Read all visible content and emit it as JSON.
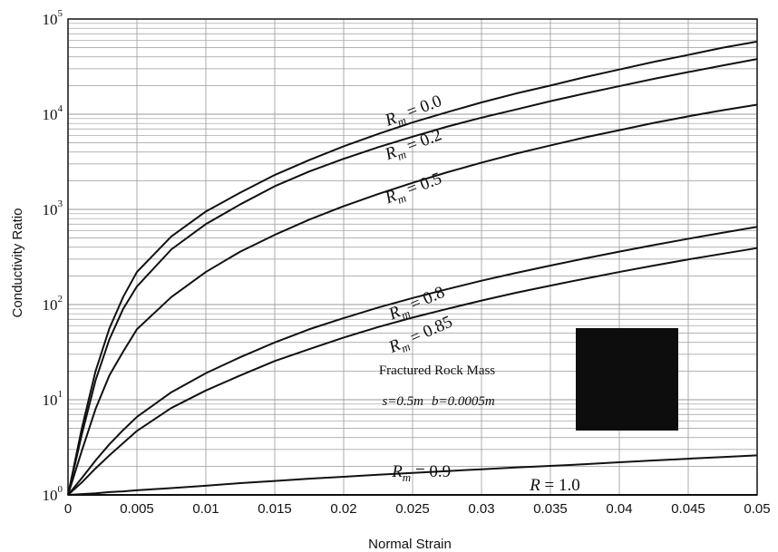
{
  "chart_data": {
    "type": "line",
    "title": "",
    "xlabel": "Normal Strain",
    "ylabel": "Conductivity Ratio",
    "xlim": [
      0,
      0.05
    ],
    "ylim": [
      1,
      100000
    ],
    "yscale": "log",
    "grid": true,
    "x_ticks": [
      "0",
      "0.005",
      "0.01",
      "0.015",
      "0.02",
      "0.025",
      "0.03",
      "0.035",
      "0.04",
      "0.045",
      "0.05"
    ],
    "y_ticks": [
      {
        "base": "10",
        "exp": "0"
      },
      {
        "base": "10",
        "exp": "1"
      },
      {
        "base": "10",
        "exp": "2"
      },
      {
        "base": "10",
        "exp": "3"
      },
      {
        "base": "10",
        "exp": "4"
      },
      {
        "base": "10",
        "exp": "5"
      }
    ],
    "x": [
      0,
      0.001,
      0.002,
      0.003,
      0.004,
      0.005,
      0.0075,
      0.01,
      0.0125,
      0.015,
      0.0175,
      0.02,
      0.0225,
      0.025,
      0.0275,
      0.03,
      0.0325,
      0.035,
      0.0375,
      0.04,
      0.0425,
      0.045,
      0.0475,
      0.05
    ],
    "series": [
      {
        "name": "R_m = 0.0",
        "values": [
          1,
          5,
          20,
          56,
          120,
          220,
          520,
          950,
          1500,
          2300,
          3300,
          4600,
          6200,
          8200,
          10500,
          13300,
          16500,
          20000,
          24500,
          29500,
          35500,
          42000,
          50000,
          58000
        ]
      },
      {
        "name": "R_m = 0.2",
        "values": [
          1,
          4.3,
          16,
          43,
          90,
          155,
          380,
          700,
          1130,
          1750,
          2500,
          3400,
          4500,
          5800,
          7400,
          9200,
          11200,
          13700,
          16500,
          19700,
          23500,
          27700,
          32500,
          38000
        ]
      },
      {
        "name": "R_m = 0.5",
        "values": [
          1,
          2.9,
          8,
          18,
          32,
          55,
          120,
          220,
          360,
          540,
          780,
          1080,
          1450,
          1900,
          2450,
          3100,
          3850,
          4700,
          5700,
          6800,
          8100,
          9500,
          11000,
          12600
        ]
      },
      {
        "name": "R_m = 0.8",
        "values": [
          1,
          1.5,
          2.3,
          3.4,
          4.8,
          6.6,
          12,
          19,
          28,
          40,
          55,
          72,
          93,
          117,
          145,
          178,
          215,
          257,
          305,
          360,
          422,
          491,
          568,
          655
        ]
      },
      {
        "name": "R_m = 0.85",
        "values": [
          1,
          1.35,
          1.9,
          2.6,
          3.5,
          4.7,
          8.2,
          12.5,
          18,
          25.5,
          34,
          45,
          58,
          73,
          90,
          110,
          133,
          158,
          187,
          220,
          257,
          298,
          342,
          392
        ]
      },
      {
        "name": "R_m = 0.9",
        "values": [
          1,
          1.02,
          1.04,
          1.07,
          1.09,
          1.12,
          1.18,
          1.25,
          1.33,
          1.4,
          1.48,
          1.55,
          1.63,
          1.7,
          1.78,
          1.86,
          1.94,
          2.02,
          2.1,
          2.2,
          2.3,
          2.4,
          2.5,
          2.6
        ]
      },
      {
        "name": "R_m = 1.0",
        "values": [
          1,
          1,
          1,
          1,
          1,
          1,
          1,
          1,
          1,
          1,
          1,
          1,
          1,
          1,
          1,
          1,
          1,
          1,
          1,
          1,
          1,
          1,
          1,
          1
        ]
      }
    ],
    "curve_labels": [
      {
        "series": 0,
        "main": "R",
        "sub": "m",
        "rest": " = 0.0",
        "x": 0.0232,
        "y": 7500,
        "angle": -21
      },
      {
        "series": 1,
        "main": "R",
        "sub": "m",
        "rest": " = 0.2",
        "x": 0.0232,
        "y": 3300,
        "angle": -21
      },
      {
        "series": 2,
        "main": "R",
        "sub": "m",
        "rest": " = 0.5",
        "x": 0.0232,
        "y": 1150,
        "angle": -21
      },
      {
        "series": 3,
        "main": "R",
        "sub": "m",
        "rest": " = 0.8",
        "x": 0.0235,
        "y": 69,
        "angle": -24
      },
      {
        "series": 4,
        "main": "R",
        "sub": "m",
        "rest": " = 0.85",
        "x": 0.0235,
        "y": 31,
        "angle": -24
      },
      {
        "series": 5,
        "main": "R",
        "sub": "m",
        "rest": " = 0.9",
        "x": 0.0235,
        "y": 1.55,
        "angle": 0
      },
      {
        "series": 6,
        "main": "R",
        "sub": "",
        "rest": " = 1.0",
        "x": 0.0335,
        "y": 1.12,
        "angle": 0
      }
    ],
    "annotation": {
      "line1": "Fractured Rock Mass",
      "line2_s": "s=0.5m",
      "line2_b": "b=0.0005m"
    },
    "colors": {
      "line": "#111111",
      "grid": "#9a9a9a",
      "box": "#0d0d0d"
    }
  }
}
